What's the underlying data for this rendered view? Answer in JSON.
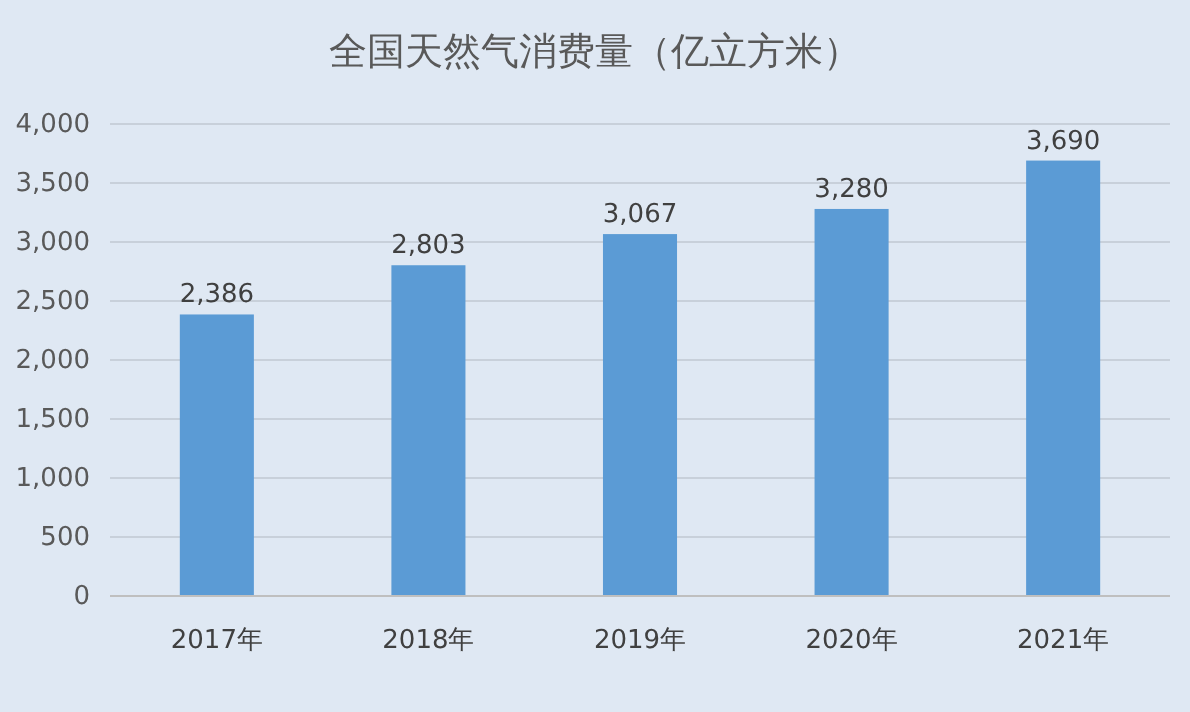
{
  "chart_data": {
    "type": "bar",
    "title": "全国天然气消费量（亿立方米）",
    "categories": [
      "2017年",
      "2018年",
      "2019年",
      "2020年",
      "2021年"
    ],
    "values": [
      2386,
      2803,
      3067,
      3280,
      3690
    ],
    "color": "#5b9bd5",
    "ylim": [
      0,
      4000
    ],
    "yticks": [
      {
        "value": 0,
        "label": "0"
      },
      {
        "value": 500,
        "label": "500"
      },
      {
        "value": 1000,
        "label": "1,000"
      },
      {
        "value": 1500,
        "label": "1,500"
      },
      {
        "value": 2000,
        "label": "2,000"
      },
      {
        "value": 2500,
        "label": "2,500"
      },
      {
        "value": 3000,
        "label": "3,000"
      },
      {
        "value": 3500,
        "label": "3,500"
      },
      {
        "value": 4000,
        "label": "4,000"
      }
    ],
    "grid": "y",
    "value_labels": [
      "2,386",
      "2,803",
      "3,067",
      "3,280",
      "3,690"
    ]
  }
}
